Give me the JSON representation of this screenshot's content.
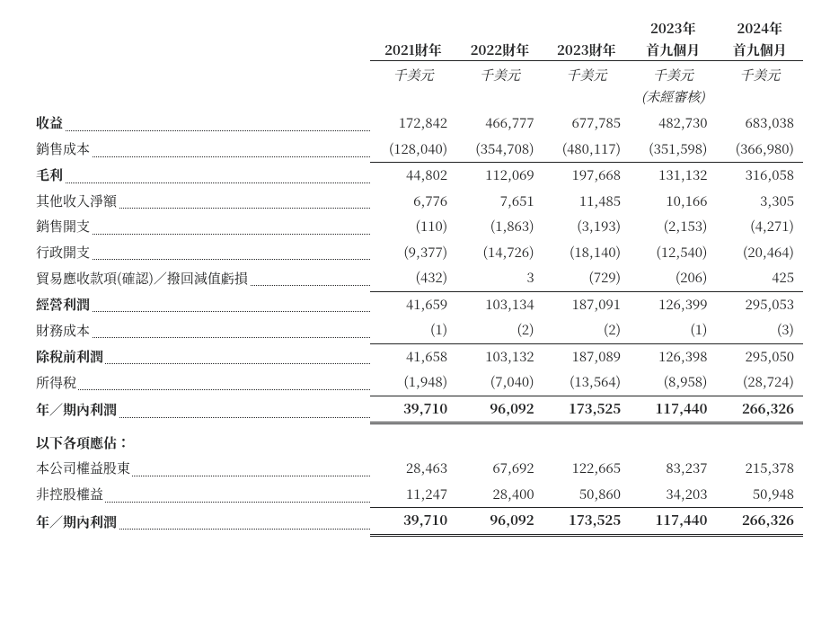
{
  "headers": {
    "y2021": "2021財年",
    "y2022": "2022財年",
    "y2023": "2023財年",
    "y2023_9m_a": "2023年",
    "y2023_9m_b": "首九個月",
    "y2024_9m_a": "2024年",
    "y2024_9m_b": "首九個月",
    "unit": "千美元",
    "unaudited": "(未經審核)"
  },
  "rows": {
    "revenue": {
      "label": "收益",
      "v": [
        "172,842",
        "466,777",
        "677,785",
        "482,730",
        "683,038"
      ],
      "bold": true
    },
    "cogs": {
      "label": "銷售成本",
      "v": [
        "(128,040)",
        "(354,708)",
        "(480,117)",
        "(351,598)",
        "(366,980)"
      ]
    },
    "gross": {
      "label": "毛利",
      "v": [
        "44,802",
        "112,069",
        "197,668",
        "131,132",
        "316,058"
      ],
      "bold": true
    },
    "other_inc": {
      "label": "其他收入淨額",
      "v": [
        "6,776",
        "7,651",
        "11,485",
        "10,166",
        "3,305"
      ]
    },
    "selling": {
      "label": "銷售開支",
      "v": [
        "(110)",
        "(1,863)",
        "(3,193)",
        "(2,153)",
        "(4,271)"
      ]
    },
    "admin": {
      "label": "行政開支",
      "v": [
        "(9,377)",
        "(14,726)",
        "(18,140)",
        "(12,540)",
        "(20,464)"
      ]
    },
    "trade_recv": {
      "label": "貿易應收款項(確認)／撥回減值虧損",
      "v": [
        "(432)",
        "3",
        "(729)",
        "(206)",
        "425"
      ]
    },
    "op_profit": {
      "label": "經營利潤",
      "v": [
        "41,659",
        "103,134",
        "187,091",
        "126,399",
        "295,053"
      ],
      "bold": true
    },
    "fin_cost": {
      "label": "財務成本",
      "v": [
        "(1)",
        "(2)",
        "(2)",
        "(1)",
        "(3)"
      ]
    },
    "pbt": {
      "label": "除稅前利潤",
      "v": [
        "41,658",
        "103,132",
        "187,089",
        "126,398",
        "295,050"
      ],
      "bold": true
    },
    "tax": {
      "label": "所得稅",
      "v": [
        "(1,948)",
        "(7,040)",
        "(13,564)",
        "(8,958)",
        "(28,724)"
      ]
    },
    "profit1": {
      "label": "年／期內利潤",
      "v": [
        "39,710",
        "96,092",
        "173,525",
        "117,440",
        "266,326"
      ],
      "bold": true
    },
    "attrib_head": {
      "label": "以下各項應佔："
    },
    "equity": {
      "label": "本公司權益股東",
      "v": [
        "28,463",
        "67,692",
        "122,665",
        "83,237",
        "215,378"
      ]
    },
    "nci": {
      "label": "非控股權益",
      "v": [
        "11,247",
        "28,400",
        "50,860",
        "34,203",
        "50,948"
      ]
    },
    "profit2": {
      "label": "年／期內利潤",
      "v": [
        "39,710",
        "96,092",
        "173,525",
        "117,440",
        "266,326"
      ],
      "bold": true
    }
  }
}
